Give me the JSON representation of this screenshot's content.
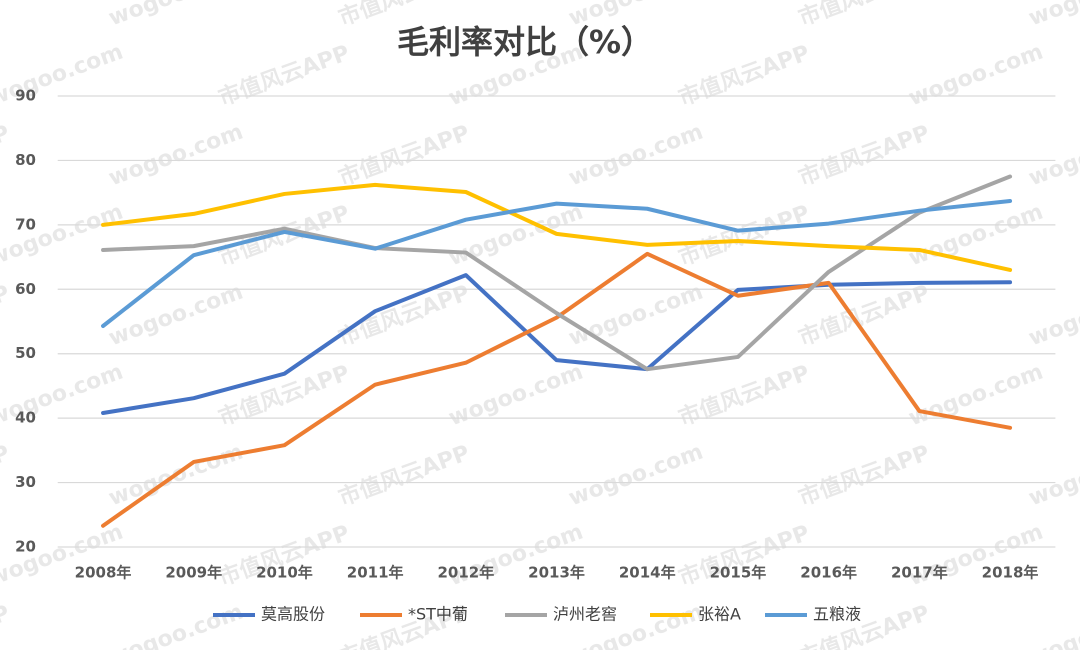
{
  "chart_data": {
    "type": "line",
    "title": "毛利率对比（%）",
    "watermark": [
      "市值风云APP",
      "wogoo.com"
    ],
    "categories": [
      "2008年",
      "2009年",
      "2010年",
      "2011年",
      "2012年",
      "2013年",
      "2014年",
      "2015年",
      "2016年",
      "2017年",
      "2018年"
    ],
    "series": [
      {
        "name": "莫高股份",
        "color": "#4472c4",
        "values": [
          40.8,
          43.1,
          46.9,
          56.6,
          62.2,
          49.0,
          47.6,
          59.9,
          60.7,
          61.0,
          61.1
        ]
      },
      {
        "name": "*ST中葡",
        "color": "#ed7d31",
        "values": [
          23.3,
          33.2,
          35.8,
          45.2,
          48.6,
          55.6,
          65.5,
          59.0,
          61.0,
          41.1,
          38.5
        ]
      },
      {
        "name": "泸州老窖",
        "color": "#a5a5a5",
        "values": [
          66.1,
          66.7,
          69.4,
          66.4,
          65.7,
          56.3,
          47.6,
          49.5,
          62.7,
          71.9,
          77.5
        ]
      },
      {
        "name": "张裕A",
        "color": "#ffc000",
        "values": [
          70.0,
          71.7,
          74.8,
          76.2,
          75.1,
          68.6,
          66.9,
          67.5,
          66.7,
          66.1,
          63.0
        ]
      },
      {
        "name": "五粮液",
        "color": "#5b9bd5",
        "values": [
          54.3,
          65.3,
          68.9,
          66.3,
          70.8,
          73.3,
          72.5,
          69.1,
          70.2,
          72.2,
          73.7
        ]
      }
    ],
    "ylim": [
      20,
      90
    ],
    "yticks": [
      20,
      30,
      40,
      50,
      60,
      70,
      80,
      90
    ],
    "grid": true,
    "legend": "bottom"
  }
}
